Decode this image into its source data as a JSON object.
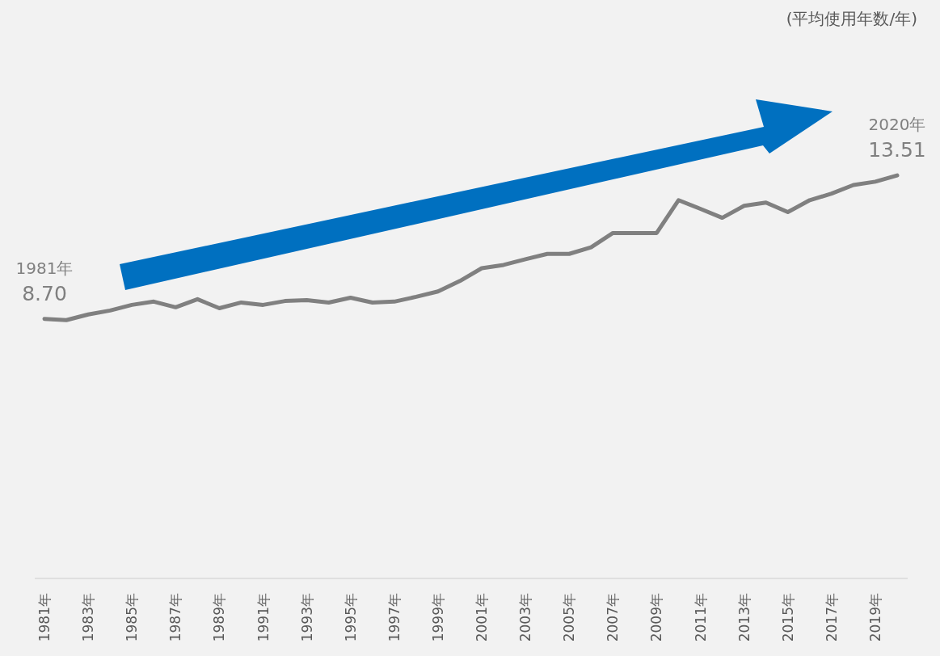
{
  "chart_data": {
    "type": "line",
    "categories": [
      "1981年",
      null,
      "1983年",
      null,
      "1985年",
      null,
      "1987年",
      null,
      "1989年",
      null,
      "1991年",
      null,
      "1993年",
      null,
      "1995年",
      null,
      "1997年",
      null,
      "1999年",
      null,
      "2001年",
      null,
      "2003年",
      null,
      "2005年",
      null,
      "2007年",
      null,
      "2009年",
      null,
      "2011年",
      null,
      "2013年",
      null,
      "2015年",
      null,
      "2017年",
      null,
      "2019年",
      null
    ],
    "series": [
      {
        "color": "#808080",
        "values": [
          8.7,
          8.66,
          8.85,
          8.98,
          9.17,
          9.28,
          9.09,
          9.36,
          9.06,
          9.25,
          9.17,
          9.3,
          9.33,
          9.25,
          9.41,
          9.25,
          9.28,
          9.44,
          9.62,
          9.97,
          10.4,
          10.51,
          10.7,
          10.88,
          10.88,
          11.1,
          11.58,
          11.58,
          11.58,
          12.68,
          12.39,
          12.09,
          12.49,
          12.6,
          12.28,
          12.68,
          12.9,
          13.19,
          13.3,
          13.51
        ],
        "value_labels": [
          "8.70",
          null,
          null,
          null,
          null,
          null,
          null,
          null,
          null,
          null,
          null,
          null,
          null,
          null,
          null,
          null,
          null,
          null,
          null,
          null,
          null,
          null,
          null,
          null,
          null,
          null,
          null,
          null,
          null,
          null,
          null,
          null,
          null,
          null,
          null,
          null,
          null,
          null,
          null,
          "13.51"
        ]
      }
    ],
    "annotations": [
      "(平均使用年数/年)",
      {
        "text": "1981年",
        "x": "1981年",
        "y": 8.7
      },
      {
        "text": "2020年",
        "y": 13.51
      }
    ],
    "tick_labels": "x",
    "marker": "none",
    "line_style": "solid"
  }
}
